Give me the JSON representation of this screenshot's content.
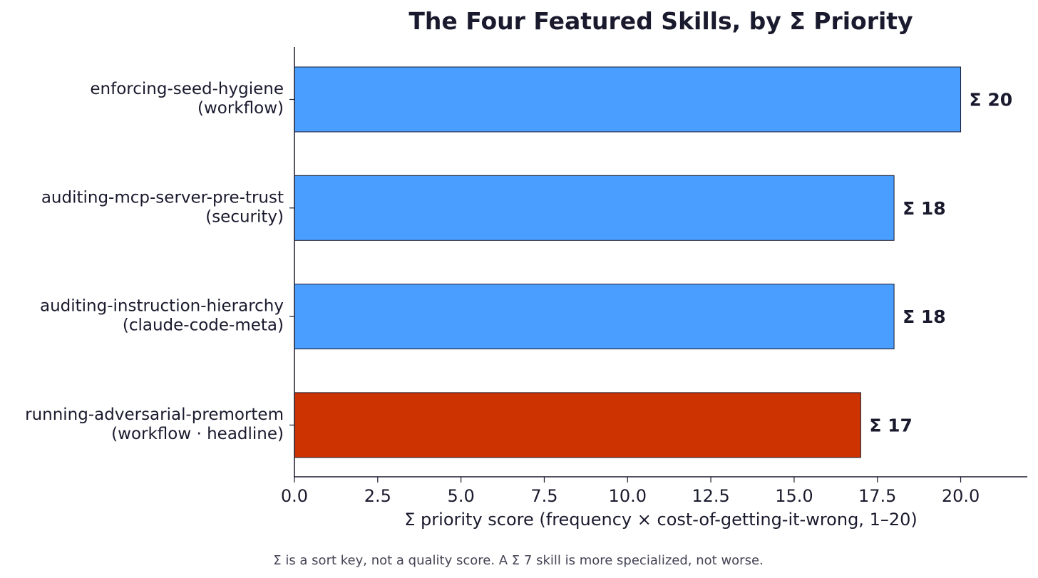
{
  "chart_data": {
    "type": "bar",
    "orientation": "horizontal",
    "title": "The Four Featured Skills, by Σ Priority",
    "categories": [
      [
        "enforcing-seed-hygiene",
        "(workflow)"
      ],
      [
        "auditing-mcp-server-pre-trust",
        "(security)"
      ],
      [
        "auditing-instruction-hierarchy",
        "(claude-code-meta)"
      ],
      [
        "running-adversarial-premortem",
        "(workflow · headline)"
      ]
    ],
    "values": [
      20,
      18,
      18,
      17
    ],
    "value_labels": [
      "Σ 20",
      "Σ 18",
      "Σ 18",
      "Σ 17"
    ],
    "bar_colors": [
      "#4a9eff",
      "#4a9eff",
      "#4a9eff",
      "#cc3300"
    ],
    "xlabel": "Σ priority score   (frequency × cost-of-getting-it-wrong, 1–20)",
    "ylabel": "",
    "xlim": [
      0,
      22
    ],
    "xticks": [
      0,
      2.5,
      5,
      7.5,
      10,
      12.5,
      15,
      17.5,
      20
    ],
    "xtick_labels": [
      "0.0",
      "2.5",
      "5.0",
      "7.5",
      "10.0",
      "12.5",
      "15.0",
      "17.5",
      "20.0"
    ],
    "grid": false,
    "legend": "none"
  },
  "footnote": "Σ is a sort key, not a quality score. A Σ 7 skill is more specialized, not worse."
}
